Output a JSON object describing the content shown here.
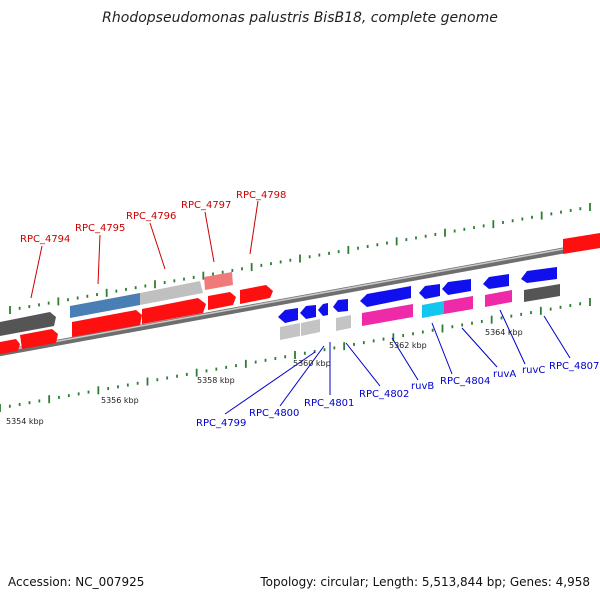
{
  "title": "Rhodopseudomonas palustris BisB18, complete genome",
  "accession": "Accession: NC_007925",
  "summary": "Topology: circular; Length: 5,513,844 bp; Genes: 4,958",
  "colors": {
    "forward_label": "#cc0000",
    "reverse_label": "#0000cc",
    "tick_major": "#2e7d32",
    "backbone": "#8a8a8a"
  },
  "scale": [
    {
      "label": "5354 kbp"
    },
    {
      "label": "5356 kbp"
    },
    {
      "label": "5358 kbp"
    },
    {
      "label": "5360 kbp"
    },
    {
      "label": "5362 kbp"
    },
    {
      "label": "5364 kbp"
    }
  ],
  "forward_labels": [
    {
      "label": "RPC_4794"
    },
    {
      "label": "RPC_4795"
    },
    {
      "label": "RPC_4796"
    },
    {
      "label": "RPC_4797"
    },
    {
      "label": "RPC_4798"
    }
  ],
  "reverse_labels": [
    {
      "label": "RPC_4799"
    },
    {
      "label": "RPC_4800"
    },
    {
      "label": "RPC_4801"
    },
    {
      "label": "RPC_4802"
    },
    {
      "label": "ruvB"
    },
    {
      "label": "RPC_4804"
    },
    {
      "label": "ruvA"
    },
    {
      "label": "ruvC"
    },
    {
      "label": "RPC_4807"
    }
  ]
}
